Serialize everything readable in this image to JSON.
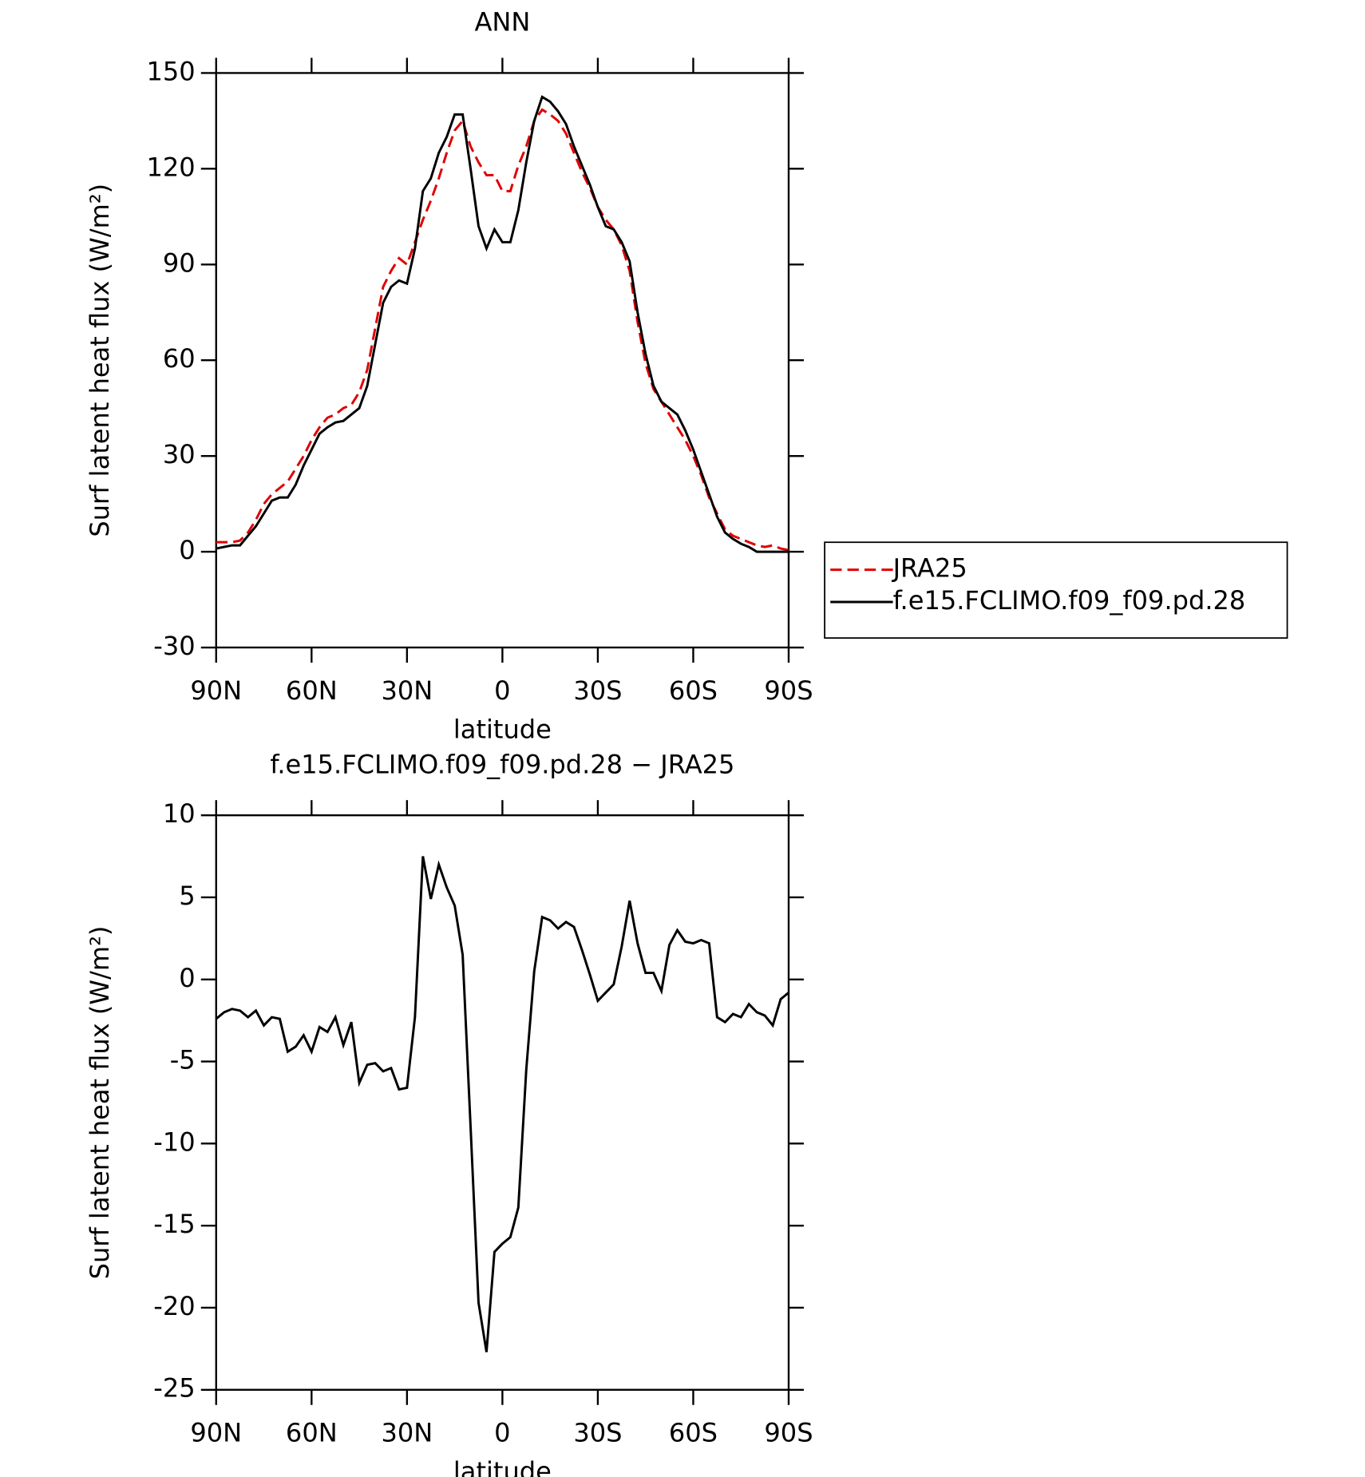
{
  "chart_data": [
    {
      "type": "line",
      "title": "ANN",
      "xlabel": "latitude",
      "ylabel": "Surf latent heat flux (W/m²)",
      "xlim": [
        90,
        -90
      ],
      "ylim": [
        -30,
        150
      ],
      "xticks": [
        {
          "value": 90,
          "label": "90N"
        },
        {
          "value": 60,
          "label": "60N"
        },
        {
          "value": 30,
          "label": "30N"
        },
        0,
        {
          "value": -30,
          "label": "30S"
        },
        {
          "value": -60,
          "label": "60S"
        },
        {
          "value": -90,
          "label": "90S"
        }
      ],
      "yticks": [
        -30,
        0,
        30,
        60,
        90,
        120,
        150
      ],
      "legend": "right",
      "x": [
        90,
        87.5,
        85,
        82.5,
        80,
        77.5,
        75,
        72.5,
        70,
        67.5,
        65,
        62.5,
        60,
        57.5,
        55,
        52.5,
        50,
        47.5,
        45,
        42.5,
        40,
        37.5,
        35,
        32.5,
        30,
        27.5,
        25,
        22.5,
        20,
        17.5,
        15,
        12.5,
        10,
        7.5,
        5,
        2.5,
        0,
        -2.5,
        -5,
        -7.5,
        -10,
        -12.5,
        -15,
        -17.5,
        -20,
        -22.5,
        -25,
        -27.5,
        -30,
        -32.5,
        -35,
        -37.5,
        -40,
        -42.5,
        -45,
        -47.5,
        -50,
        -52.5,
        -55,
        -57.5,
        -60,
        -62.5,
        -65,
        -67.5,
        -70,
        -72.5,
        -75,
        -77.5,
        -80,
        -82.5,
        -85,
        -87.5,
        -90
      ],
      "series": [
        {
          "name": "JRA25",
          "color": "#e00000",
          "dashed": true,
          "values": [
            3,
            3,
            3,
            3.5,
            6,
            10,
            15,
            18,
            20,
            22,
            26,
            30,
            35,
            39,
            42,
            43,
            45,
            46,
            50,
            57,
            70,
            83,
            88,
            92,
            90,
            97,
            104,
            110,
            117,
            125,
            132,
            135,
            127,
            122,
            118,
            118,
            113,
            113,
            121,
            127,
            135,
            138.5,
            137,
            135,
            131,
            125,
            119,
            114,
            108,
            104,
            101,
            96,
            88,
            72,
            59,
            51,
            47,
            43,
            39,
            35,
            30,
            24,
            17,
            12,
            7,
            5,
            4,
            3,
            2,
            1.5,
            2,
            1,
            0.5
          ]
        },
        {
          "name": "f.e15.FCLIMO.f09_f09.pd.28",
          "color": "#000000",
          "dashed": false,
          "values": [
            1,
            1.5,
            2,
            2,
            5,
            8,
            12,
            16,
            17,
            17,
            21,
            27,
            32,
            37,
            39,
            40.5,
            41,
            43,
            45,
            52,
            65,
            78,
            83,
            85,
            84,
            95,
            113,
            117,
            125,
            130,
            137,
            137,
            120,
            102,
            95,
            101,
            97,
            97,
            107,
            122,
            135,
            142.5,
            141,
            138,
            134,
            127,
            121,
            115,
            108,
            102,
            101,
            97,
            91,
            75,
            62,
            52,
            47,
            45,
            43,
            38,
            32,
            25,
            18,
            11,
            6,
            4,
            2.5,
            1.5,
            0,
            0,
            0,
            0,
            0
          ]
        }
      ]
    },
    {
      "type": "line",
      "title": "f.e15.FCLIMO.f09_f09.pd.28 − JRA25",
      "xlabel": "latitude",
      "ylabel": "Surf latent heat flux (W/m²)",
      "xlim": [
        90,
        -90
      ],
      "ylim": [
        -25,
        10
      ],
      "xticks": [
        {
          "value": 90,
          "label": "90N"
        },
        {
          "value": 60,
          "label": "60N"
        },
        {
          "value": 30,
          "label": "30N"
        },
        0,
        {
          "value": -30,
          "label": "30S"
        },
        {
          "value": -60,
          "label": "60S"
        },
        {
          "value": -90,
          "label": "90S"
        }
      ],
      "yticks": [
        -25,
        -20,
        -15,
        -10,
        -5,
        0,
        5,
        10
      ],
      "x": [
        90,
        87.5,
        85,
        82.5,
        80,
        77.5,
        75,
        72.5,
        70,
        67.5,
        65,
        62.5,
        60,
        57.5,
        55,
        52.5,
        50,
        47.5,
        45,
        42.5,
        40,
        37.5,
        35,
        32.5,
        30,
        27.5,
        25,
        22.5,
        20,
        17.5,
        15,
        12.5,
        10,
        7.5,
        5,
        2.5,
        0,
        -2.5,
        -5,
        -7.5,
        -10,
        -12.5,
        -15,
        -17.5,
        -20,
        -22.5,
        -25,
        -27.5,
        -30,
        -32.5,
        -35,
        -37.5,
        -40,
        -42.5,
        -45,
        -47.5,
        -50,
        -52.5,
        -55,
        -57.5,
        -60,
        -62.5,
        -65,
        -67.5,
        -70,
        -72.5,
        -75,
        -77.5,
        -80,
        -82.5,
        -85,
        -87.5,
        -90
      ],
      "series": [
        {
          "color": "#000000",
          "dashed": false,
          "values": [
            -2.4,
            -2,
            -1.8,
            -1.9,
            -2.3,
            -1.9,
            -2.8,
            -2.3,
            -2.4,
            -4.4,
            -4.1,
            -3.4,
            -4.4,
            -2.9,
            -3.2,
            -2.3,
            -4,
            -2.6,
            -6.3,
            -5.2,
            -5.1,
            -5.6,
            -5.4,
            -6.7,
            -6.6,
            -2.3,
            7.5,
            4.9,
            7,
            5.6,
            4.5,
            1.5,
            -9,
            -19.7,
            -22.7,
            -16.6,
            -16.1,
            -15.7,
            -13.9,
            -5.5,
            0.5,
            3.8,
            3.6,
            3.1,
            3.5,
            3.2,
            1.8,
            0.3,
            -1.3,
            -0.8,
            -0.3,
            2,
            4.8,
            2.2,
            0.4,
            0.4,
            -0.7,
            2.1,
            3,
            2.3,
            2.2,
            2.4,
            2.2,
            -2.3,
            -2.6,
            -2.1,
            -2.3,
            -1.5,
            -2,
            -2.2,
            -2.8,
            -1.2,
            -0.8
          ]
        }
      ]
    }
  ]
}
